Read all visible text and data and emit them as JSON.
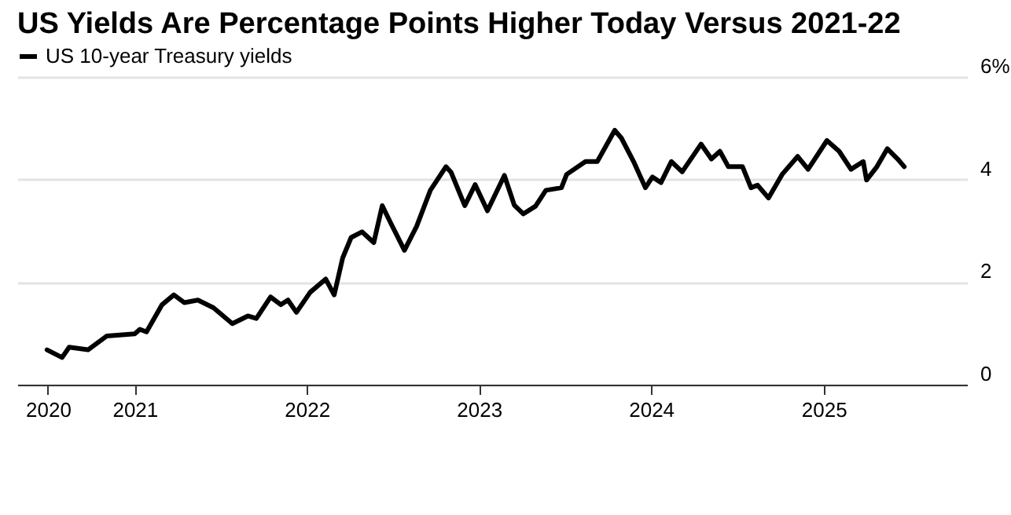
{
  "chart_data": {
    "type": "line",
    "title": "US Yields Are Percentage Points Higher Today Versus 2021-22",
    "x": [
      "2020-06-29",
      "2020-07-31",
      "2020-08-15",
      "2020-09-24",
      "2020-11-03",
      "2021-01-01",
      "2021-01-12",
      "2021-01-26",
      "2021-02-28",
      "2021-03-25",
      "2021-04-16",
      "2021-05-15",
      "2021-06-17",
      "2021-07-27",
      "2021-08-29",
      "2021-09-16",
      "2021-10-16",
      "2021-11-07",
      "2021-11-22",
      "2021-12-10",
      "2022-01-08",
      "2022-02-10",
      "2022-02-28",
      "2022-03-18",
      "2022-04-05",
      "2022-04-28",
      "2022-05-23",
      "2022-06-10",
      "2022-06-28",
      "2022-07-27",
      "2022-08-22",
      "2022-09-20",
      "2022-10-23",
      "2022-11-03",
      "2022-12-02",
      "2022-12-24",
      "2023-01-19",
      "2023-02-24",
      "2023-03-17",
      "2023-04-05",
      "2023-05-01",
      "2023-05-23",
      "2023-06-25",
      "2023-07-06",
      "2023-08-15",
      "2023-09-09",
      "2023-10-16",
      "2023-10-30",
      "2023-11-25",
      "2023-12-20",
      "2024-01-04",
      "2024-01-22",
      "2024-02-13",
      "2024-03-07",
      "2024-04-16",
      "2024-05-08",
      "2024-05-26",
      "2024-06-13",
      "2024-07-13",
      "2024-07-31",
      "2024-08-14",
      "2024-09-06",
      "2024-10-05",
      "2024-11-07",
      "2024-11-29",
      "2025-01-08",
      "2025-02-03",
      "2025-02-28",
      "2025-03-26",
      "2025-04-02",
      "2025-04-24",
      "2025-05-16",
      "2025-06-07",
      "2025-06-21"
    ],
    "series": [
      {
        "name": "US 10-year Treasury yields",
        "color": "#000000",
        "values": [
          0.68,
          0.53,
          0.73,
          0.68,
          0.95,
          0.99,
          1.08,
          1.03,
          1.56,
          1.75,
          1.6,
          1.65,
          1.5,
          1.19,
          1.34,
          1.29,
          1.71,
          1.56,
          1.65,
          1.41,
          1.8,
          2.06,
          1.75,
          2.47,
          2.87,
          2.98,
          2.77,
          3.49,
          3.15,
          2.62,
          3.09,
          3.79,
          4.25,
          4.14,
          3.49,
          3.9,
          3.39,
          4.08,
          3.5,
          3.33,
          3.48,
          3.79,
          3.84,
          4.1,
          4.35,
          4.35,
          4.96,
          4.81,
          4.35,
          3.84,
          4.05,
          3.94,
          4.35,
          4.15,
          4.69,
          4.4,
          4.55,
          4.25,
          4.25,
          3.84,
          3.89,
          3.64,
          4.1,
          4.45,
          4.2,
          4.76,
          4.55,
          4.2,
          4.35,
          3.99,
          4.25,
          4.6,
          4.4,
          4.25
        ]
      }
    ],
    "xlim": [
      "2020-04-27",
      "2025-11-01"
    ],
    "xticks": [
      {
        "value": "2020-07-01",
        "label": "2020"
      },
      {
        "value": "2021-01-01",
        "label": "2021"
      },
      {
        "value": "2022-01-01",
        "label": "2022"
      },
      {
        "value": "2023-01-01",
        "label": "2023"
      },
      {
        "value": "2024-01-01",
        "label": "2024"
      },
      {
        "value": "2025-01-01",
        "label": "2025"
      }
    ],
    "ylim": [
      0,
      6
    ],
    "yticks": [
      0,
      2,
      4,
      {
        "value": 6,
        "label": "6%"
      }
    ],
    "grid": "y",
    "legend": "top left",
    "line_style": "solid"
  }
}
